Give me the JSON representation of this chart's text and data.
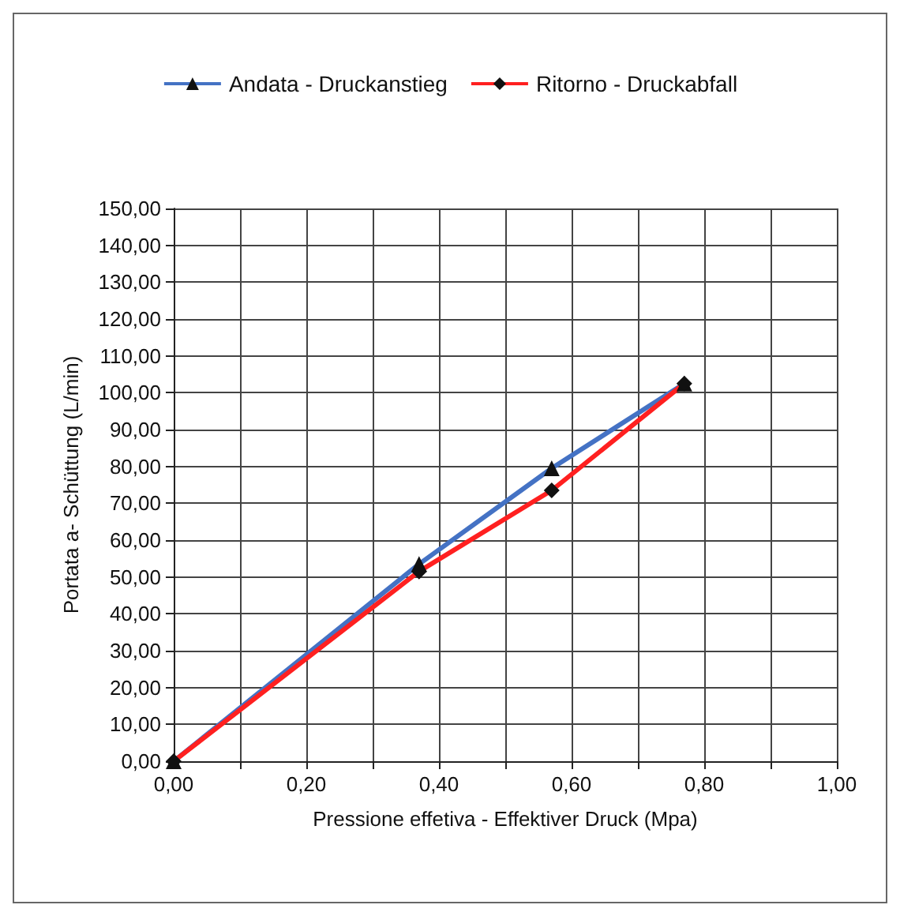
{
  "chart_data": {
    "type": "line",
    "xlabel": "Pressione effetiva - Effektiver Druck (Mpa)",
    "ylabel": "Portata a- Schüttung (L/min)",
    "series": [
      {
        "name": "Andata - Druckanstieg",
        "color": "#4472c4",
        "marker": "triangle",
        "x": [
          0,
          0.37,
          0.57,
          0.77
        ],
        "values": [
          0,
          53.5,
          79.5,
          102.5
        ]
      },
      {
        "name": "Ritorno - Druckabfall",
        "color": "#ff2020",
        "marker": "diamond",
        "x": [
          0,
          0.37,
          0.57,
          0.77
        ],
        "values": [
          0,
          51.5,
          73.5,
          102.5
        ]
      }
    ],
    "xlim": [
      0,
      1
    ],
    "xticks": [
      {
        "value": 0,
        "label": "0,00"
      },
      {
        "value": 0.1,
        "label": null
      },
      {
        "value": 0.2,
        "label": "0,20"
      },
      {
        "value": 0.3,
        "label": null
      },
      {
        "value": 0.4,
        "label": "0,40"
      },
      {
        "value": 0.5,
        "label": null
      },
      {
        "value": 0.6,
        "label": "0,60"
      },
      {
        "value": 0.7,
        "label": null
      },
      {
        "value": 0.8,
        "label": "0,80"
      },
      {
        "value": 0.9,
        "label": null
      },
      {
        "value": 1,
        "label": "1,00"
      }
    ],
    "ylim": [
      0,
      150
    ],
    "yticks": [
      {
        "value": 0,
        "label": "0,00"
      },
      {
        "value": 10,
        "label": "10,00"
      },
      {
        "value": 20,
        "label": "20,00"
      },
      {
        "value": 30,
        "label": "30,00"
      },
      {
        "value": 40,
        "label": "40,00"
      },
      {
        "value": 50,
        "label": "50,00"
      },
      {
        "value": 60,
        "label": "60,00"
      },
      {
        "value": 70,
        "label": "70,00"
      },
      {
        "value": 80,
        "label": "80,00"
      },
      {
        "value": 90,
        "label": "90,00"
      },
      {
        "value": 100,
        "label": "100,00"
      },
      {
        "value": 110,
        "label": "110,00"
      },
      {
        "value": 120,
        "label": "120,00"
      },
      {
        "value": 130,
        "label": "130,00"
      },
      {
        "value": 140,
        "label": "140,00"
      },
      {
        "value": 150,
        "label": "150,00"
      }
    ],
    "grid": true,
    "legend": "top"
  }
}
